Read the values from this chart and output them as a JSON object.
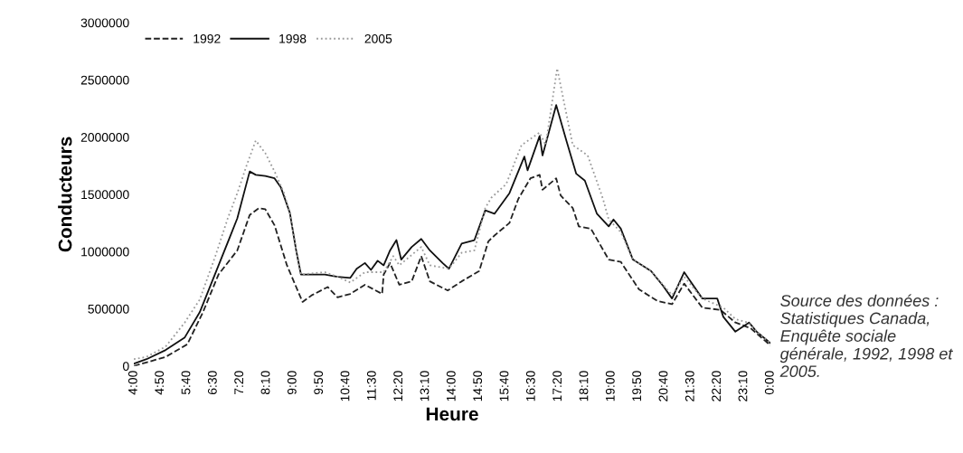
{
  "chart_data": {
    "type": "line",
    "xlabel": "Heure",
    "ylabel": "Conducteurs",
    "xlim": [
      4,
      24
    ],
    "xticks": [
      {
        "value": 4,
        "label": "4:00"
      },
      {
        "value": 4.8333,
        "label": "4:50"
      },
      {
        "value": 5.6667,
        "label": "5:40"
      },
      {
        "value": 6.5,
        "label": "6:30"
      },
      {
        "value": 7.3333,
        "label": "7:20"
      },
      {
        "value": 8.1667,
        "label": "8:10"
      },
      {
        "value": 9,
        "label": "9:00"
      },
      {
        "value": 9.8333,
        "label": "9:50"
      },
      {
        "value": 10.6667,
        "label": "10:40"
      },
      {
        "value": 11.5,
        "label": "11:30"
      },
      {
        "value": 12.3333,
        "label": "12:20"
      },
      {
        "value": 13.1667,
        "label": "13:10"
      },
      {
        "value": 14,
        "label": "14:00"
      },
      {
        "value": 14.8333,
        "label": "14:50"
      },
      {
        "value": 15.6667,
        "label": "15:40"
      },
      {
        "value": 16.5,
        "label": "16:30"
      },
      {
        "value": 17.3333,
        "label": "17:20"
      },
      {
        "value": 18.1667,
        "label": "18:10"
      },
      {
        "value": 19,
        "label": "19:00"
      },
      {
        "value": 19.8333,
        "label": "19:50"
      },
      {
        "value": 20.6667,
        "label": "20:40"
      },
      {
        "value": 21.5,
        "label": "21:30"
      },
      {
        "value": 22.3333,
        "label": "22:20"
      },
      {
        "value": 23.1667,
        "label": "23:10"
      },
      {
        "value": 24,
        "label": "0:00"
      }
    ],
    "ylim": [
      0,
      3000000
    ],
    "yticks": [
      0,
      500000,
      1000000,
      1500000,
      2000000,
      2500000,
      3000000
    ],
    "legend": "top left",
    "grid": false,
    "series": [
      {
        "name": "1992",
        "color": "#222222",
        "line_style": "dashed",
        "x": [
          4,
          5.0,
          5.68,
          6.17,
          6.66,
          7.25,
          7.64,
          7.93,
          8.13,
          8.42,
          8.81,
          9.3,
          9.6,
          10.09,
          10.4,
          10.8,
          11.26,
          11.8,
          11.85,
          12.05,
          12.34,
          12.73,
          13.03,
          13.3,
          13.86,
          14.3,
          14.85,
          15.14,
          15.33,
          15.8,
          16.08,
          16.46,
          16.75,
          16.84,
          17.27,
          17.41,
          17.79,
          17.98,
          18.36,
          18.92,
          19.3,
          19.87,
          20.44,
          20.91,
          21.29,
          21.86,
          22.43,
          22.9,
          23.38,
          24
        ],
        "values": [
          0,
          80000,
          190000,
          470000,
          800000,
          1010000,
          1320000,
          1380000,
          1370000,
          1230000,
          880000,
          560000,
          620000,
          690000,
          600000,
          630000,
          710000,
          630000,
          800000,
          900000,
          710000,
          740000,
          960000,
          740000,
          660000,
          740000,
          830000,
          1090000,
          1140000,
          1250000,
          1460000,
          1640000,
          1670000,
          1540000,
          1640000,
          1490000,
          1380000,
          1220000,
          1200000,
          930000,
          910000,
          670000,
          570000,
          540000,
          720000,
          510000,
          490000,
          380000,
          330000,
          180000
        ]
      },
      {
        "name": "1998",
        "color": "#111111",
        "line_style": "solid",
        "x": [
          4,
          4.4,
          5.0,
          5.6,
          6.07,
          6.46,
          6.85,
          7.25,
          7.64,
          7.83,
          8.13,
          8.42,
          8.62,
          8.9,
          9.1,
          9.25,
          9.6,
          10.0,
          10.4,
          10.8,
          11.0,
          11.26,
          11.45,
          11.66,
          11.85,
          12.05,
          12.25,
          12.4,
          12.73,
          13.03,
          13.3,
          13.7,
          13.9,
          14.3,
          14.7,
          15.04,
          15.33,
          15.8,
          16.27,
          16.37,
          16.75,
          16.84,
          17.27,
          17.6,
          17.9,
          18.17,
          18.55,
          18.92,
          19.07,
          19.3,
          19.68,
          20.25,
          20.63,
          20.91,
          21.29,
          21.86,
          22.33,
          22.52,
          22.9,
          23.33,
          23.57,
          24
        ],
        "values": [
          20000,
          60000,
          140000,
          250000,
          470000,
          740000,
          1010000,
          1290000,
          1700000,
          1670000,
          1660000,
          1640000,
          1560000,
          1340000,
          1010000,
          800000,
          800000,
          800000,
          780000,
          770000,
          850000,
          900000,
          840000,
          920000,
          880000,
          1010000,
          1100000,
          930000,
          1040000,
          1110000,
          1010000,
          900000,
          850000,
          1070000,
          1100000,
          1360000,
          1330000,
          1510000,
          1830000,
          1710000,
          2010000,
          1840000,
          2280000,
          1960000,
          1680000,
          1620000,
          1330000,
          1220000,
          1280000,
          1200000,
          930000,
          830000,
          700000,
          590000,
          820000,
          590000,
          590000,
          430000,
          300000,
          380000,
          300000,
          200000
        ]
      },
      {
        "name": "2005",
        "color": "#9a9a9a",
        "line_style": "dotted",
        "x": [
          4,
          4.4,
          5.0,
          5.6,
          6.07,
          6.56,
          6.95,
          7.25,
          7.54,
          7.83,
          8.13,
          8.42,
          8.72,
          8.9,
          9.1,
          9.25,
          10.0,
          10.4,
          10.8,
          11.26,
          11.85,
          12.15,
          12.34,
          13.03,
          13.3,
          13.9,
          14.3,
          14.7,
          15.04,
          15.23,
          15.7,
          16.18,
          16.75,
          16.94,
          17.3,
          17.79,
          18.26,
          18.74,
          18.92,
          19.3,
          19.68,
          20.25,
          20.91,
          21.29,
          21.86,
          22.52,
          22.9,
          23.3,
          23.57,
          24
        ],
        "values": [
          60000,
          80000,
          170000,
          380000,
          580000,
          960000,
          1290000,
          1510000,
          1750000,
          1970000,
          1860000,
          1700000,
          1510000,
          1340000,
          1010000,
          800000,
          820000,
          780000,
          730000,
          820000,
          820000,
          960000,
          880000,
          1040000,
          880000,
          850000,
          990000,
          1010000,
          1380000,
          1470000,
          1590000,
          1930000,
          2040000,
          1930000,
          2600000,
          1930000,
          1840000,
          1460000,
          1280000,
          1170000,
          930000,
          830000,
          620000,
          780000,
          590000,
          510000,
          410000,
          380000,
          300000,
          200000
        ]
      }
    ],
    "annotations": [
      "Source des données : Statistiques Canada, Enquête sociale générale, 1992, 1998 et 2005."
    ]
  }
}
